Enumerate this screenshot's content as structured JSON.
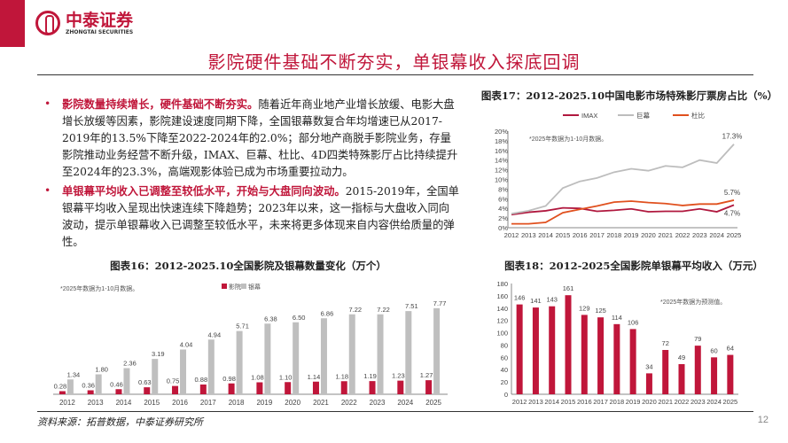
{
  "header": {
    "logo_cn": "中泰证券",
    "logo_en": "ZHONGTAI SECURITIES",
    "title": "影院硬件基础不断夯实，单银幕收入探底回调"
  },
  "bullets": [
    {
      "highlight": "影院数量持续增长，硬件基础不断夯实。",
      "text": "随着近年商业地产业增长放缓、电影大盘增长放缓等因素，影院建设速度同期下降，全国银幕数复合年均增速已从2017-2019年的13.5%下降至2022-2024年的2.0%；部分地产商脱手影院业务，存量影院推动业务经营不断升级，IMAX、巨幕、杜比、4D四类特殊影厅占比持续提升至2024年的23.3%，高端观影体验已成为市场重要拉动力。"
    },
    {
      "highlight": "单银幕平均收入已调整至较低水平，开始与大盘同向波动。",
      "text": "2015-2019年，全国单银幕平均收入呈现出快速连续下降趋势；2023年以来，这一指标与大盘收入同向波动，提示单银幕收入已调整至较低水平，未来将更多体现来自内容供给质量的弹性。"
    }
  ],
  "footer": {
    "source": "资料来源：拓普数据，中泰证券研究所",
    "page": "12"
  },
  "chart_data": [
    {
      "type": "line",
      "title": "图表17：2012-2025.10中国电影市场特殊影厅票房占比（%）",
      "note": "*2025年数据为1-10月数据。",
      "x": [
        "2012",
        "2013",
        "2014",
        "2015",
        "2016",
        "2017",
        "2018",
        "2019",
        "2020",
        "2021",
        "2022",
        "2023",
        "2024",
        "2025"
      ],
      "yticks": [
        "0%",
        "2%",
        "4%",
        "6%",
        "8%",
        "10%",
        "12%",
        "14%",
        "16%",
        "18%",
        "20%"
      ],
      "ylim": [
        0,
        20
      ],
      "series": [
        {
          "name": "IMAX",
          "color": "#b0183e",
          "values": [
            2.7,
            3.2,
            3.5,
            4.1,
            4.0,
            3.4,
            3.6,
            3.9,
            3.3,
            3.4,
            3.4,
            3.9,
            3.3,
            4.7
          ],
          "end_label": "4.7%"
        },
        {
          "name": "巨幕",
          "color": "#bdbdbd",
          "values": [
            2.9,
            3.5,
            4.5,
            8.2,
            9.6,
            10.3,
            11.5,
            12.2,
            11.8,
            12.8,
            12.5,
            14.0,
            13.4,
            17.3
          ],
          "end_label": "17.3%"
        },
        {
          "name": "杜比",
          "color": "#e0501e",
          "values": [
            0.8,
            0.8,
            1.1,
            3.1,
            3.8,
            4.5,
            5.3,
            5.5,
            5.2,
            5.0,
            4.6,
            4.9,
            4.9,
            5.7
          ],
          "end_label": "5.7%"
        }
      ]
    },
    {
      "type": "bar",
      "title": "图表16：2012-2025.10全国影院及银幕数量变化（万个）",
      "note": "*2025年数据为1-10月数据。",
      "categories": [
        "2012",
        "2013",
        "2014",
        "2015",
        "2016",
        "2017",
        "2018",
        "2019",
        "2020",
        "2021",
        "2022",
        "2023",
        "2024",
        "2025"
      ],
      "series": [
        {
          "name": "影院",
          "color": "#c0163a",
          "values": [
            0.28,
            0.36,
            0.46,
            0.63,
            0.75,
            0.88,
            0.98,
            1.08,
            1.1,
            1.14,
            1.18,
            1.19,
            1.23,
            1.27
          ]
        },
        {
          "name": "银幕",
          "color": "#bfbfbf",
          "values": [
            1.34,
            1.8,
            2.36,
            3.19,
            4.04,
            4.94,
            5.71,
            6.38,
            6.5,
            6.86,
            7.22,
            7.22,
            7.51,
            7.77
          ]
        }
      ]
    },
    {
      "type": "bar",
      "title": "图表18：2012-2025全国影院单银幕平均收入（万元）",
      "note": "*2025年数据为预测值。",
      "categories": [
        "2012",
        "2013",
        "2014",
        "2015",
        "2016",
        "2017",
        "2018",
        "2019",
        "2020",
        "2021",
        "2022",
        "2023",
        "2024",
        "2025"
      ],
      "yticks": [
        "0",
        "20",
        "40",
        "60",
        "80",
        "100",
        "120",
        "140",
        "160",
        "180"
      ],
      "ylim": [
        0,
        180
      ],
      "values": [
        146,
        141,
        143,
        161,
        129,
        125,
        114,
        106,
        34,
        72,
        49,
        79,
        60,
        64
      ],
      "color": "#c0163a"
    }
  ]
}
